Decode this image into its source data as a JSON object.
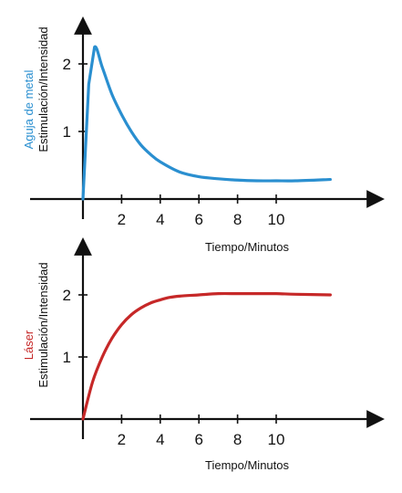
{
  "chart_data": [
    {
      "type": "line",
      "series_label": "Aguja de metal",
      "ylabel": "Estimulación/Intensidad",
      "xlabel": "Tiempo/Minutos",
      "color": "#2a8fd0",
      "xlim": [
        0,
        14.5
      ],
      "ylim": [
        0,
        3.1
      ],
      "xticks": [
        2,
        4,
        6,
        8,
        10
      ],
      "yticks": [
        1,
        2
      ],
      "x": [
        0,
        0.3,
        0.6,
        1,
        1.5,
        2,
        2.5,
        3,
        3.5,
        4,
        5,
        6,
        7,
        8,
        9,
        10,
        11,
        12.8
      ],
      "y": [
        0,
        1.7,
        2.25,
        1.95,
        1.55,
        1.25,
        1.0,
        0.8,
        0.66,
        0.55,
        0.4,
        0.33,
        0.3,
        0.28,
        0.27,
        0.27,
        0.27,
        0.29
      ]
    },
    {
      "type": "line",
      "series_label": "Láser",
      "ylabel": "Estimulación/Intensidad",
      "xlabel": "Tiempo/Minutos",
      "color": "#c62828",
      "xlim": [
        0,
        14.5
      ],
      "ylim": [
        0,
        3.1
      ],
      "xticks": [
        2,
        4,
        6,
        8,
        10
      ],
      "yticks": [
        1,
        2
      ],
      "x": [
        0,
        0.5,
        1,
        1.5,
        2,
        2.5,
        3,
        3.5,
        4,
        4.5,
        5,
        6,
        7,
        8,
        9,
        10,
        11,
        12.8
      ],
      "y": [
        0,
        0.6,
        1.0,
        1.3,
        1.52,
        1.68,
        1.79,
        1.87,
        1.92,
        1.96,
        1.98,
        2.0,
        2.02,
        2.02,
        2.02,
        2.02,
        2.01,
        2.0
      ]
    }
  ]
}
